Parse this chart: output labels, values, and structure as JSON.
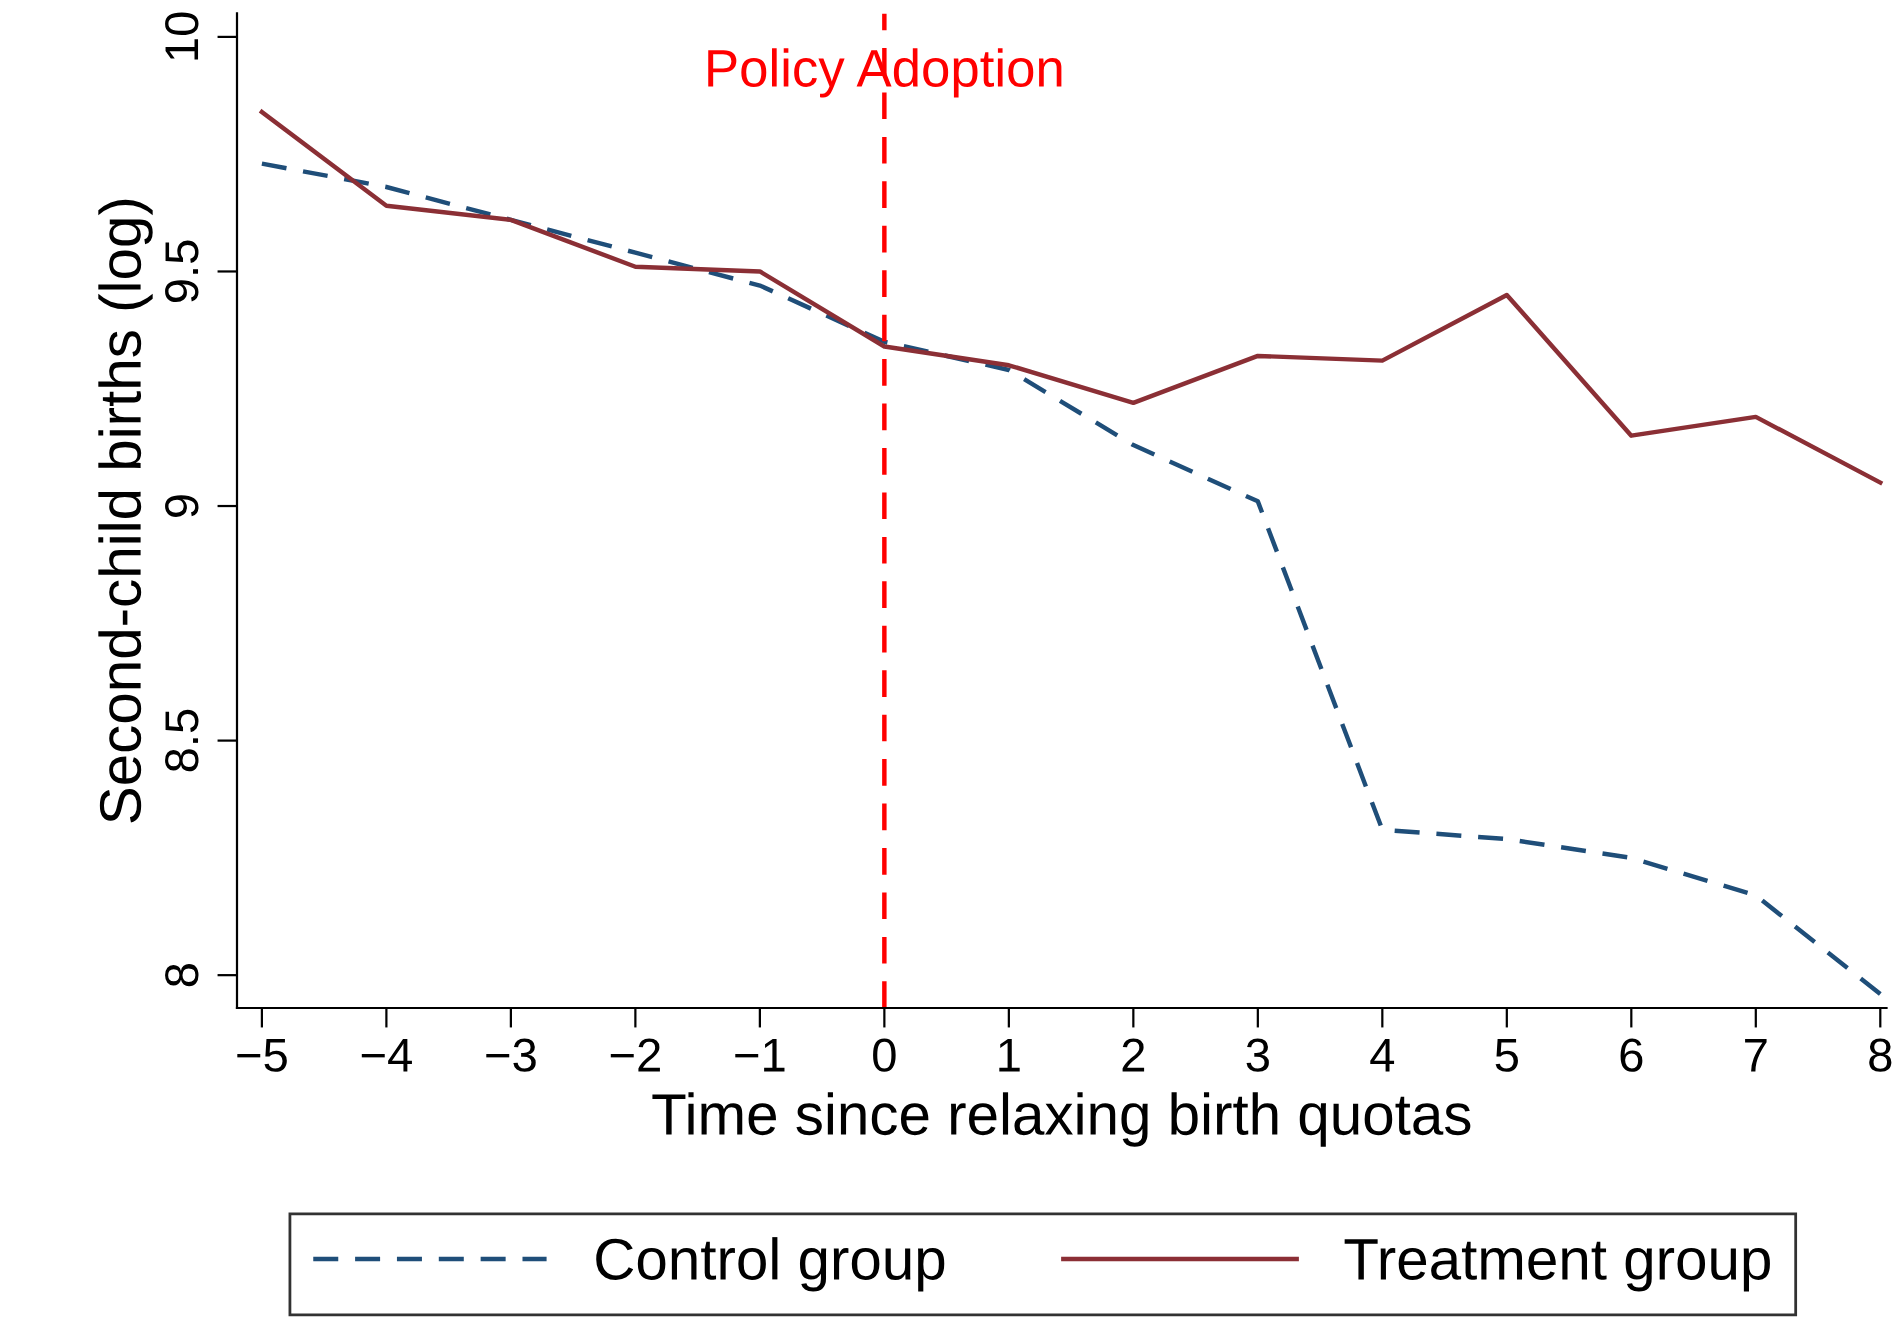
{
  "chart_data": {
    "type": "line",
    "xlabel": "Time since relaxing birth quotas",
    "ylabel": "Second-child births (log)",
    "x": [
      -5,
      -4,
      -3,
      -2,
      -1,
      0,
      1,
      2,
      3,
      4,
      5,
      6,
      7,
      8
    ],
    "series": [
      {
        "name": "Control group",
        "color": "#1f4e79",
        "line_style": "dashed",
        "values": [
          9.73,
          9.68,
          9.61,
          9.54,
          9.47,
          9.35,
          9.29,
          9.13,
          9.01,
          8.31,
          8.29,
          8.25,
          8.17,
          7.96
        ]
      },
      {
        "name": "Treatment group",
        "color": "#8b2f35",
        "line_style": "solid",
        "values": [
          9.84,
          9.64,
          9.61,
          9.51,
          9.5,
          9.34,
          9.3,
          9.22,
          9.32,
          9.31,
          9.45,
          9.15,
          9.19,
          9.05
        ]
      }
    ],
    "xlim": [
      -5.2,
      8.05
    ],
    "xticks": [
      {
        "value": -5,
        "label": "−5"
      },
      {
        "value": -4,
        "label": "−4"
      },
      {
        "value": -3,
        "label": "−3"
      },
      {
        "value": -2,
        "label": "−2"
      },
      {
        "value": -1,
        "label": "−1"
      },
      0,
      1,
      2,
      3,
      4,
      5,
      6,
      7,
      8
    ],
    "ylim": [
      7.93,
      10.05
    ],
    "yticks": [
      8,
      8.5,
      9,
      9.5,
      10
    ],
    "ref_lines": [
      {
        "axis": "x",
        "value": 0,
        "label": "Policy Adoption",
        "color": "#ff0000",
        "line_style": "dashed"
      }
    ],
    "grid": false,
    "legend": "bottom"
  }
}
